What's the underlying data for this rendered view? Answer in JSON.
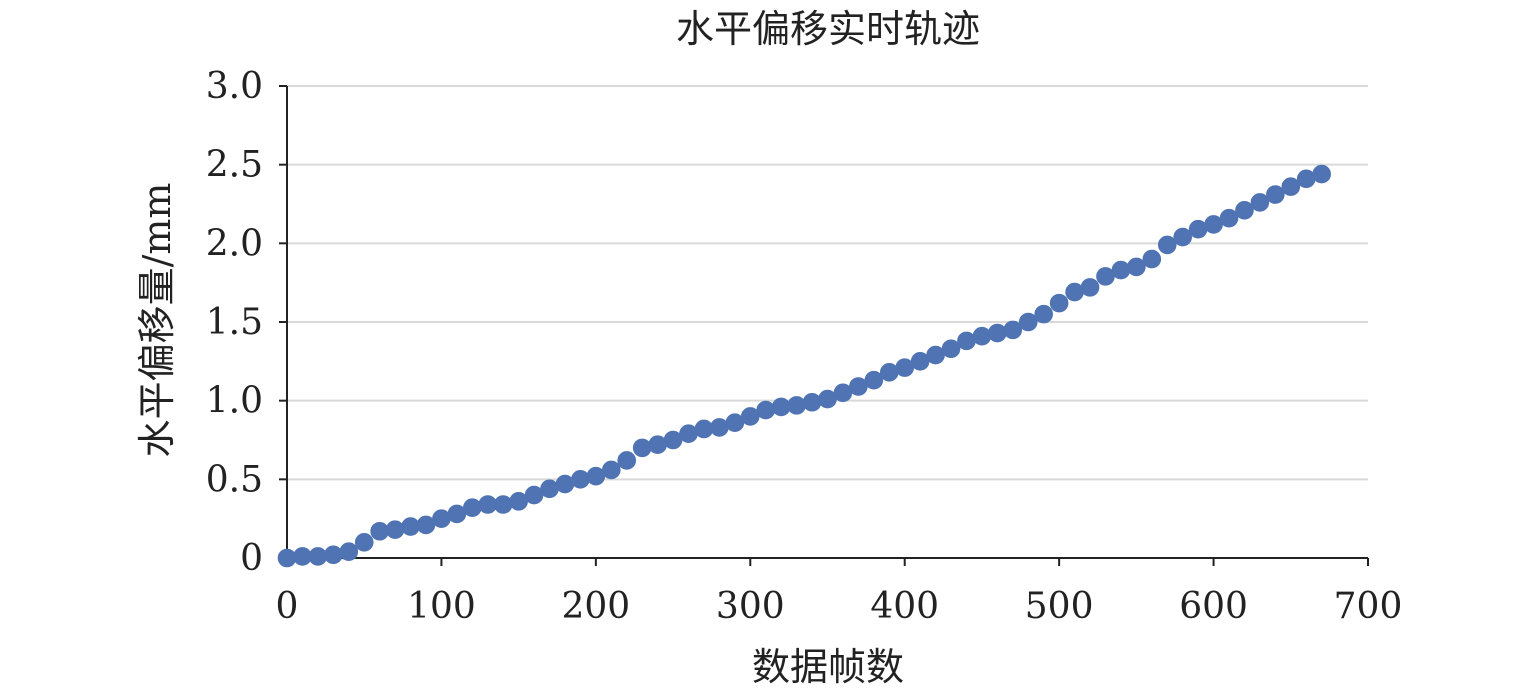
{
  "chart_data": {
    "type": "scatter",
    "title": "水平偏移实时轨迹",
    "xlabel": "数据帧数",
    "ylabel": "水平偏移量/mm",
    "xlim": [
      0,
      700
    ],
    "ylim": [
      0,
      3.0
    ],
    "x_ticks": [
      "0",
      "100",
      "200",
      "300",
      "400",
      "500",
      "600",
      "700"
    ],
    "y_ticks": [
      "0",
      "0.5",
      "1.0",
      "1.5",
      "2.0",
      "2.5",
      "3.0"
    ],
    "grid": true,
    "legend": "none",
    "series_color": "#4f73b3",
    "series": [
      {
        "x": [
          0,
          10,
          20,
          30,
          40,
          50,
          60,
          70,
          80,
          90,
          100,
          110,
          120,
          130,
          140,
          150,
          160,
          170,
          180,
          190,
          200,
          210,
          220,
          230,
          240,
          250,
          260,
          270,
          280,
          290,
          300,
          310,
          320,
          330,
          340,
          350,
          360,
          370,
          380,
          390,
          400,
          410,
          420,
          430,
          440,
          450,
          460,
          470,
          480,
          490,
          500,
          510,
          520,
          530,
          540,
          550,
          560,
          570,
          580,
          590,
          600,
          610,
          620,
          630,
          640,
          650,
          660,
          670
        ],
        "y": [
          0.0,
          0.01,
          0.01,
          0.02,
          0.04,
          0.1,
          0.17,
          0.18,
          0.2,
          0.21,
          0.25,
          0.28,
          0.32,
          0.34,
          0.34,
          0.36,
          0.4,
          0.44,
          0.47,
          0.5,
          0.52,
          0.56,
          0.62,
          0.7,
          0.72,
          0.75,
          0.79,
          0.82,
          0.83,
          0.86,
          0.9,
          0.94,
          0.96,
          0.97,
          0.99,
          1.01,
          1.05,
          1.09,
          1.13,
          1.18,
          1.21,
          1.25,
          1.29,
          1.33,
          1.38,
          1.41,
          1.43,
          1.45,
          1.5,
          1.55,
          1.62,
          1.69,
          1.72,
          1.79,
          1.83,
          1.85,
          1.9,
          1.99,
          2.04,
          2.09,
          2.12,
          2.16,
          2.21,
          2.26,
          2.31,
          2.36,
          2.41,
          2.44
        ]
      }
    ]
  }
}
